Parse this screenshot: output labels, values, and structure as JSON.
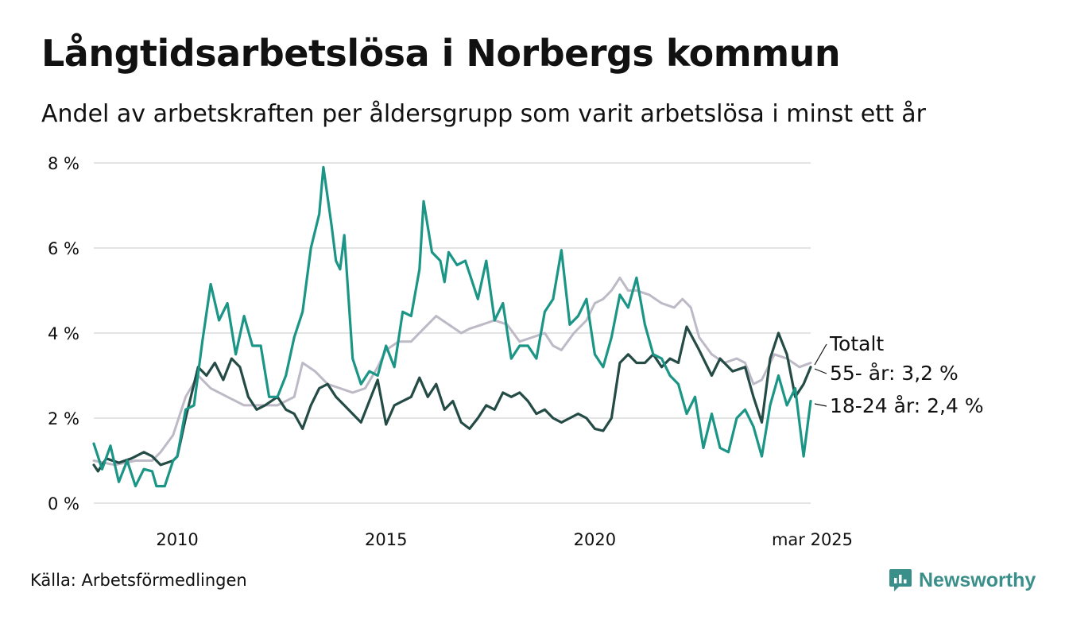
{
  "title": "Långtidsarbetslösa i Norbergs kommun",
  "subtitle": "Andel av arbetskraften per åldersgrupp som varit arbetslösa i minst ett år",
  "source": "Källa: Arbetsförmedlingen",
  "brand": {
    "name": "Newsworthy",
    "icon": "newsworthy-logo-icon"
  },
  "colors": {
    "totalt": "#bdb9c6",
    "age55": "#244b45",
    "age1824": "#1b9586",
    "grid": "#dcdcdc"
  },
  "chart_data": {
    "type": "line",
    "y_ticks": [
      "0 %",
      "2 %",
      "4 %",
      "6 %",
      "8 %"
    ],
    "y_tick_values": [
      0,
      2,
      4,
      6,
      8
    ],
    "ylim": [
      0,
      8
    ],
    "x_ticks": [
      "2010",
      "2015",
      "2020",
      "mar 2025"
    ],
    "x_tick_values": [
      2010.0,
      2015.0,
      2020.0,
      2025.17
    ],
    "xlim": [
      2008.0,
      2025.17
    ],
    "grid": true,
    "series": [
      {
        "key": "totalt",
        "name": "Totalt",
        "label": "Totalt",
        "points": [
          [
            2008.0,
            1.0
          ],
          [
            2008.5,
            0.9
          ],
          [
            2009.0,
            1.0
          ],
          [
            2009.4,
            1.0
          ],
          [
            2009.6,
            1.2
          ],
          [
            2009.9,
            1.6
          ],
          [
            2010.2,
            2.5
          ],
          [
            2010.5,
            3.0
          ],
          [
            2010.8,
            2.7
          ],
          [
            2011.2,
            2.5
          ],
          [
            2011.6,
            2.3
          ],
          [
            2012.0,
            2.3
          ],
          [
            2012.4,
            2.3
          ],
          [
            2012.8,
            2.5
          ],
          [
            2013.0,
            3.3
          ],
          [
            2013.3,
            3.1
          ],
          [
            2013.6,
            2.8
          ],
          [
            2013.9,
            2.7
          ],
          [
            2014.2,
            2.6
          ],
          [
            2014.5,
            2.7
          ],
          [
            2014.8,
            3.2
          ],
          [
            2015.0,
            3.6
          ],
          [
            2015.3,
            3.8
          ],
          [
            2015.6,
            3.8
          ],
          [
            2015.9,
            4.1
          ],
          [
            2016.2,
            4.4
          ],
          [
            2016.5,
            4.2
          ],
          [
            2016.8,
            4.0
          ],
          [
            2017.0,
            4.1
          ],
          [
            2017.3,
            4.2
          ],
          [
            2017.6,
            4.3
          ],
          [
            2017.9,
            4.2
          ],
          [
            2018.2,
            3.8
          ],
          [
            2018.5,
            3.9
          ],
          [
            2018.8,
            4.0
          ],
          [
            2019.0,
            3.7
          ],
          [
            2019.2,
            3.6
          ],
          [
            2019.5,
            4.0
          ],
          [
            2019.8,
            4.3
          ],
          [
            2020.0,
            4.7
          ],
          [
            2020.2,
            4.8
          ],
          [
            2020.4,
            5.0
          ],
          [
            2020.6,
            5.3
          ],
          [
            2020.8,
            5.0
          ],
          [
            2021.0,
            5.0
          ],
          [
            2021.3,
            4.9
          ],
          [
            2021.6,
            4.7
          ],
          [
            2021.9,
            4.6
          ],
          [
            2022.1,
            4.8
          ],
          [
            2022.3,
            4.6
          ],
          [
            2022.5,
            3.9
          ],
          [
            2022.8,
            3.5
          ],
          [
            2023.1,
            3.3
          ],
          [
            2023.4,
            3.4
          ],
          [
            2023.6,
            3.3
          ],
          [
            2023.8,
            2.8
          ],
          [
            2024.0,
            2.9
          ],
          [
            2024.3,
            3.5
          ],
          [
            2024.6,
            3.4
          ],
          [
            2024.9,
            3.2
          ],
          [
            2025.17,
            3.3
          ]
        ]
      },
      {
        "key": "age55",
        "name": "55- år",
        "label": "55- år: 3,2 %",
        "points": [
          [
            2008.0,
            0.9
          ],
          [
            2008.1,
            0.75
          ],
          [
            2008.3,
            1.05
          ],
          [
            2008.6,
            0.95
          ],
          [
            2008.9,
            1.05
          ],
          [
            2009.2,
            1.2
          ],
          [
            2009.4,
            1.1
          ],
          [
            2009.6,
            0.9
          ],
          [
            2009.9,
            1.0
          ],
          [
            2010.0,
            1.1
          ],
          [
            2010.2,
            2.0
          ],
          [
            2010.5,
            3.2
          ],
          [
            2010.7,
            3.0
          ],
          [
            2010.9,
            3.3
          ],
          [
            2011.1,
            2.9
          ],
          [
            2011.3,
            3.4
          ],
          [
            2011.5,
            3.2
          ],
          [
            2011.7,
            2.5
          ],
          [
            2011.9,
            2.2
          ],
          [
            2012.1,
            2.3
          ],
          [
            2012.4,
            2.5
          ],
          [
            2012.6,
            2.2
          ],
          [
            2012.8,
            2.1
          ],
          [
            2013.0,
            1.75
          ],
          [
            2013.2,
            2.3
          ],
          [
            2013.4,
            2.7
          ],
          [
            2013.6,
            2.8
          ],
          [
            2013.8,
            2.5
          ],
          [
            2014.0,
            2.3
          ],
          [
            2014.2,
            2.1
          ],
          [
            2014.4,
            1.9
          ],
          [
            2014.6,
            2.4
          ],
          [
            2014.8,
            2.9
          ],
          [
            2015.0,
            1.85
          ],
          [
            2015.2,
            2.3
          ],
          [
            2015.4,
            2.4
          ],
          [
            2015.6,
            2.5
          ],
          [
            2015.8,
            2.95
          ],
          [
            2016.0,
            2.5
          ],
          [
            2016.2,
            2.8
          ],
          [
            2016.4,
            2.2
          ],
          [
            2016.6,
            2.4
          ],
          [
            2016.8,
            1.9
          ],
          [
            2017.0,
            1.75
          ],
          [
            2017.2,
            2.0
          ],
          [
            2017.4,
            2.3
          ],
          [
            2017.6,
            2.2
          ],
          [
            2017.8,
            2.6
          ],
          [
            2018.0,
            2.5
          ],
          [
            2018.2,
            2.6
          ],
          [
            2018.4,
            2.4
          ],
          [
            2018.6,
            2.1
          ],
          [
            2018.8,
            2.2
          ],
          [
            2019.0,
            2.0
          ],
          [
            2019.2,
            1.9
          ],
          [
            2019.4,
            2.0
          ],
          [
            2019.6,
            2.1
          ],
          [
            2019.8,
            2.0
          ],
          [
            2020.0,
            1.75
          ],
          [
            2020.2,
            1.7
          ],
          [
            2020.4,
            2.0
          ],
          [
            2020.6,
            3.3
          ],
          [
            2020.8,
            3.5
          ],
          [
            2021.0,
            3.3
          ],
          [
            2021.2,
            3.3
          ],
          [
            2021.4,
            3.5
          ],
          [
            2021.6,
            3.2
          ],
          [
            2021.8,
            3.4
          ],
          [
            2022.0,
            3.3
          ],
          [
            2022.2,
            4.15
          ],
          [
            2022.5,
            3.6
          ],
          [
            2022.8,
            3.0
          ],
          [
            2023.0,
            3.4
          ],
          [
            2023.3,
            3.1
          ],
          [
            2023.6,
            3.2
          ],
          [
            2023.8,
            2.5
          ],
          [
            2024.0,
            1.9
          ],
          [
            2024.2,
            3.4
          ],
          [
            2024.4,
            4.0
          ],
          [
            2024.6,
            3.5
          ],
          [
            2024.8,
            2.5
          ],
          [
            2025.0,
            2.8
          ],
          [
            2025.17,
            3.2
          ]
        ]
      },
      {
        "key": "age1824",
        "name": "18-24 år",
        "label": "18-24 år: 2,4 %",
        "points": [
          [
            2008.0,
            1.4
          ],
          [
            2008.2,
            0.8
          ],
          [
            2008.4,
            1.35
          ],
          [
            2008.6,
            0.5
          ],
          [
            2008.8,
            1.0
          ],
          [
            2009.0,
            0.4
          ],
          [
            2009.2,
            0.8
          ],
          [
            2009.4,
            0.75
          ],
          [
            2009.5,
            0.4
          ],
          [
            2009.7,
            0.4
          ],
          [
            2009.9,
            1.0
          ],
          [
            2010.0,
            1.1
          ],
          [
            2010.2,
            2.2
          ],
          [
            2010.4,
            2.3
          ],
          [
            2010.6,
            3.8
          ],
          [
            2010.8,
            5.15
          ],
          [
            2011.0,
            4.3
          ],
          [
            2011.2,
            4.7
          ],
          [
            2011.4,
            3.5
          ],
          [
            2011.6,
            4.4
          ],
          [
            2011.8,
            3.7
          ],
          [
            2012.0,
            3.7
          ],
          [
            2012.2,
            2.5
          ],
          [
            2012.4,
            2.5
          ],
          [
            2012.6,
            3.0
          ],
          [
            2012.8,
            3.9
          ],
          [
            2013.0,
            4.5
          ],
          [
            2013.2,
            6.0
          ],
          [
            2013.4,
            6.8
          ],
          [
            2013.5,
            7.9
          ],
          [
            2013.7,
            6.5
          ],
          [
            2013.8,
            5.7
          ],
          [
            2013.9,
            5.5
          ],
          [
            2014.0,
            6.3
          ],
          [
            2014.2,
            3.4
          ],
          [
            2014.4,
            2.8
          ],
          [
            2014.6,
            3.1
          ],
          [
            2014.8,
            3.0
          ],
          [
            2015.0,
            3.7
          ],
          [
            2015.2,
            3.2
          ],
          [
            2015.4,
            4.5
          ],
          [
            2015.6,
            4.4
          ],
          [
            2015.8,
            5.5
          ],
          [
            2015.9,
            7.1
          ],
          [
            2016.1,
            5.9
          ],
          [
            2016.3,
            5.7
          ],
          [
            2016.4,
            5.2
          ],
          [
            2016.5,
            5.9
          ],
          [
            2016.7,
            5.6
          ],
          [
            2016.9,
            5.7
          ],
          [
            2017.0,
            5.4
          ],
          [
            2017.2,
            4.8
          ],
          [
            2017.4,
            5.7
          ],
          [
            2017.6,
            4.3
          ],
          [
            2017.8,
            4.7
          ],
          [
            2018.0,
            3.4
          ],
          [
            2018.2,
            3.7
          ],
          [
            2018.4,
            3.7
          ],
          [
            2018.6,
            3.4
          ],
          [
            2018.8,
            4.5
          ],
          [
            2019.0,
            4.8
          ],
          [
            2019.2,
            5.95
          ],
          [
            2019.4,
            4.2
          ],
          [
            2019.6,
            4.4
          ],
          [
            2019.8,
            4.8
          ],
          [
            2020.0,
            3.5
          ],
          [
            2020.2,
            3.2
          ],
          [
            2020.4,
            3.9
          ],
          [
            2020.6,
            4.9
          ],
          [
            2020.8,
            4.6
          ],
          [
            2021.0,
            5.3
          ],
          [
            2021.2,
            4.2
          ],
          [
            2021.4,
            3.5
          ],
          [
            2021.6,
            3.4
          ],
          [
            2021.8,
            3.0
          ],
          [
            2022.0,
            2.8
          ],
          [
            2022.2,
            2.1
          ],
          [
            2022.4,
            2.5
          ],
          [
            2022.6,
            1.3
          ],
          [
            2022.8,
            2.1
          ],
          [
            2023.0,
            1.3
          ],
          [
            2023.2,
            1.2
          ],
          [
            2023.4,
            2.0
          ],
          [
            2023.6,
            2.2
          ],
          [
            2023.8,
            1.8
          ],
          [
            2024.0,
            1.1
          ],
          [
            2024.2,
            2.3
          ],
          [
            2024.4,
            3.0
          ],
          [
            2024.6,
            2.3
          ],
          [
            2024.8,
            2.7
          ],
          [
            2025.0,
            1.1
          ],
          [
            2025.17,
            2.4
          ]
        ]
      }
    ]
  }
}
